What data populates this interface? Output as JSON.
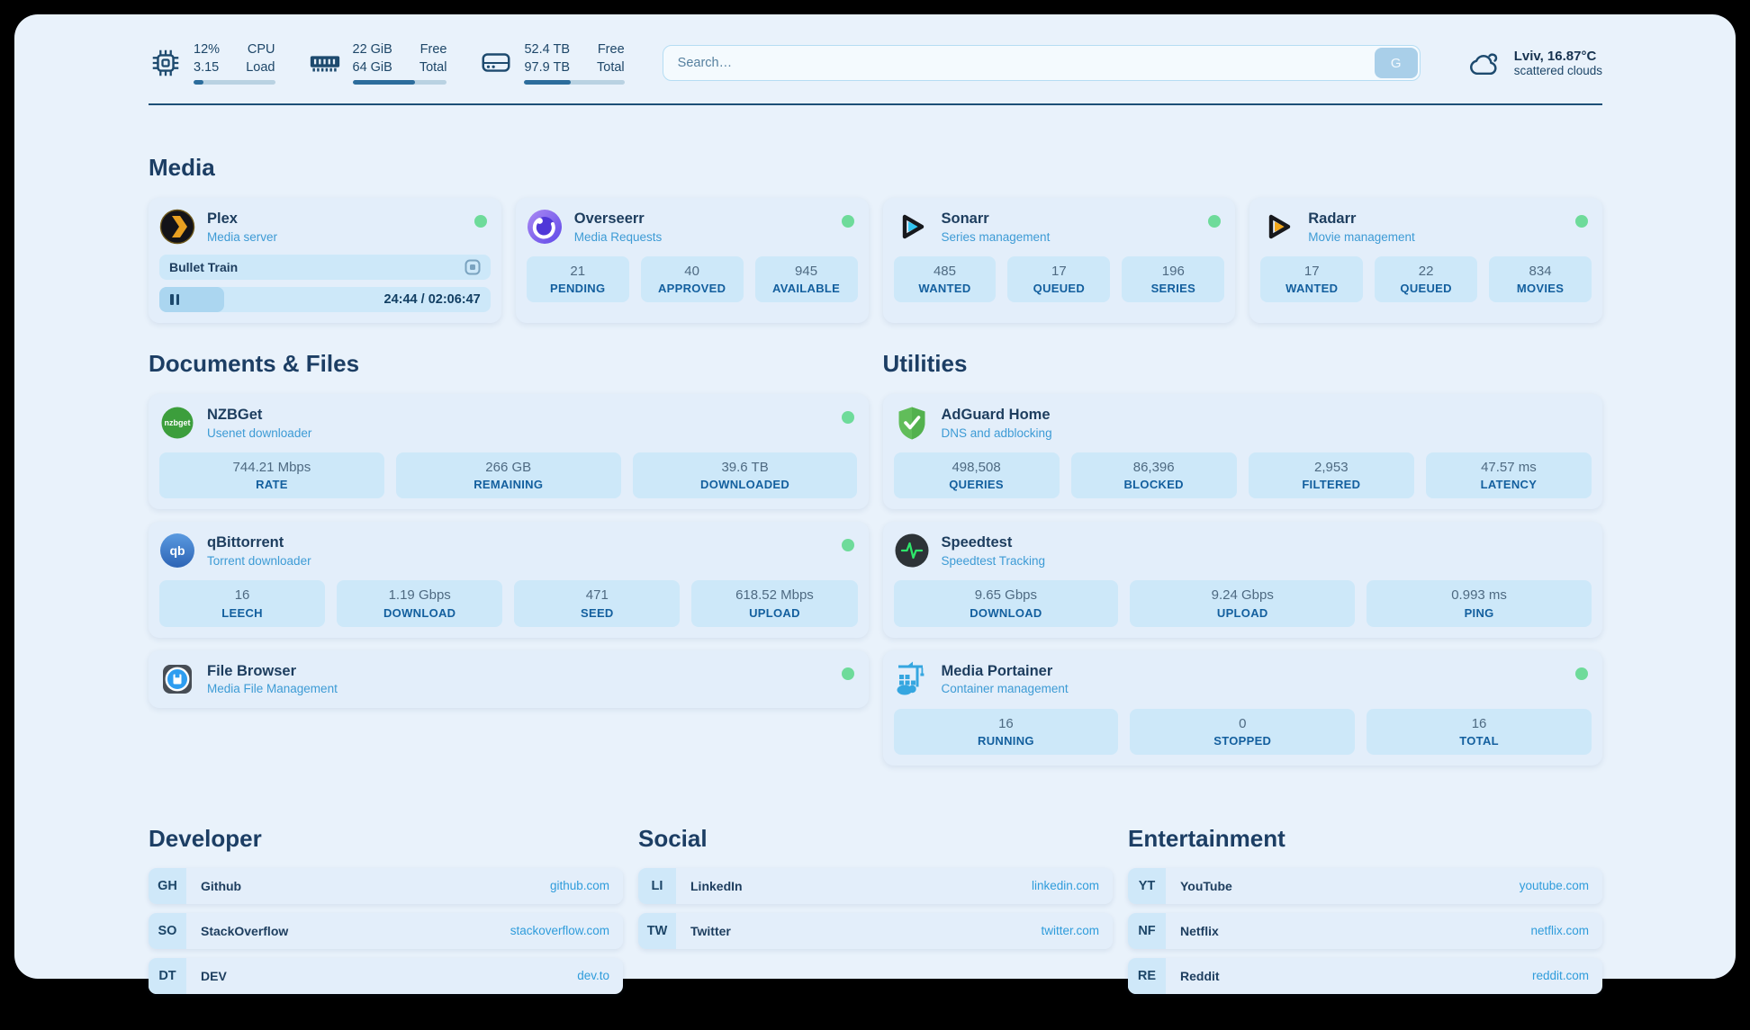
{
  "colors": {
    "accent_blue": "#2f9cdb",
    "status_green": "#6edb9a",
    "navy": "#1d4668",
    "page_bg": "#e9f2fb"
  },
  "topbar": {
    "resources": [
      {
        "icon": "cpu-icon",
        "line1_value": "12%",
        "line2_value": "3.15",
        "line1_label": "CPU",
        "line2_label": "Load",
        "progress_pct": 12
      },
      {
        "icon": "memory-icon",
        "line1_value": "22 GiB",
        "line2_value": "64 GiB",
        "line1_label": "Free",
        "line2_label": "Total",
        "progress_pct": 66
      },
      {
        "icon": "disk-icon",
        "line1_value": "52.4 TB",
        "line2_value": "97.9 TB",
        "line1_label": "Free",
        "line2_label": "Total",
        "progress_pct": 46
      }
    ],
    "search": {
      "placeholder": "Search…",
      "button": "G"
    },
    "weather": {
      "icon": "cloud-icon",
      "line1": "Lviv, 16.87°C",
      "line2": "scattered clouds"
    }
  },
  "sections": {
    "media": {
      "title": "Media",
      "plex": {
        "icon": "plex-icon",
        "name": "Plex",
        "subtitle": "Media server",
        "online": true,
        "now_playing": {
          "title": "Bullet Train",
          "time_display": "24:44 / 02:06:47",
          "progress_pct": 19.5
        }
      },
      "cards": [
        {
          "icon": "overseerr-icon",
          "name": "Overseerr",
          "subtitle": "Media Requests",
          "online": true,
          "stats": [
            {
              "value": "21",
              "label": "PENDING"
            },
            {
              "value": "40",
              "label": "APPROVED"
            },
            {
              "value": "945",
              "label": "AVAILABLE"
            }
          ]
        },
        {
          "icon": "sonarr-icon",
          "name": "Sonarr",
          "subtitle": "Series management",
          "online": true,
          "stats": [
            {
              "value": "485",
              "label": "WANTED"
            },
            {
              "value": "17",
              "label": "QUEUED"
            },
            {
              "value": "196",
              "label": "SERIES"
            }
          ]
        },
        {
          "icon": "radarr-icon",
          "name": "Radarr",
          "subtitle": "Movie management",
          "online": true,
          "stats": [
            {
              "value": "17",
              "label": "WANTED"
            },
            {
              "value": "22",
              "label": "QUEUED"
            },
            {
              "value": "834",
              "label": "MOVIES"
            }
          ]
        }
      ]
    },
    "documents": {
      "title": "Documents & Files",
      "cards": [
        {
          "icon": "nzbget-icon",
          "icon_text": "nzbget",
          "name": "NZBGet",
          "subtitle": "Usenet downloader",
          "online": true,
          "stats": [
            {
              "value": "744.21 Mbps",
              "label": "RATE"
            },
            {
              "value": "266 GB",
              "label": "REMAINING"
            },
            {
              "value": "39.6 TB",
              "label": "DOWNLOADED"
            }
          ]
        },
        {
          "icon": "qbittorrent-icon",
          "icon_text": "qb",
          "name": "qBittorrent",
          "subtitle": "Torrent downloader",
          "online": true,
          "stats": [
            {
              "value": "16",
              "label": "LEECH"
            },
            {
              "value": "1.19 Gbps",
              "label": "DOWNLOAD"
            },
            {
              "value": "471",
              "label": "SEED"
            },
            {
              "value": "618.52 Mbps",
              "label": "UPLOAD"
            }
          ]
        },
        {
          "icon": "filebrowser-icon",
          "name": "File Browser",
          "subtitle": "Media File Management",
          "online": true,
          "stats": []
        }
      ]
    },
    "utilities": {
      "title": "Utilities",
      "cards": [
        {
          "icon": "adguard-icon",
          "name": "AdGuard Home",
          "subtitle": "DNS and adblocking",
          "online": false,
          "stats": [
            {
              "value": "498,508",
              "label": "QUERIES"
            },
            {
              "value": "86,396",
              "label": "BLOCKED"
            },
            {
              "value": "2,953",
              "label": "FILTERED"
            },
            {
              "value": "47.57 ms",
              "label": "LATENCY"
            }
          ]
        },
        {
          "icon": "speedtest-icon",
          "name": "Speedtest",
          "subtitle": "Speedtest Tracking",
          "online": false,
          "stats": [
            {
              "value": "9.65 Gbps",
              "label": "DOWNLOAD"
            },
            {
              "value": "9.24 Gbps",
              "label": "UPLOAD"
            },
            {
              "value": "0.993 ms",
              "label": "PING"
            }
          ]
        },
        {
          "icon": "portainer-icon",
          "name": "Media Portainer",
          "subtitle": "Container management",
          "online": true,
          "stats": [
            {
              "value": "16",
              "label": "RUNNING"
            },
            {
              "value": "0",
              "label": "STOPPED"
            },
            {
              "value": "16",
              "label": "TOTAL"
            }
          ]
        }
      ]
    },
    "bookmarks": [
      {
        "title": "Developer",
        "links": [
          {
            "abbr": "GH",
            "name": "Github",
            "url": "github.com"
          },
          {
            "abbr": "SO",
            "name": "StackOverflow",
            "url": "stackoverflow.com"
          },
          {
            "abbr": "DT",
            "name": "DEV",
            "url": "dev.to"
          }
        ]
      },
      {
        "title": "Social",
        "links": [
          {
            "abbr": "LI",
            "name": "LinkedIn",
            "url": "linkedin.com"
          },
          {
            "abbr": "TW",
            "name": "Twitter",
            "url": "twitter.com"
          }
        ]
      },
      {
        "title": "Entertainment",
        "links": [
          {
            "abbr": "YT",
            "name": "YouTube",
            "url": "youtube.com"
          },
          {
            "abbr": "NF",
            "name": "Netflix",
            "url": "netflix.com"
          },
          {
            "abbr": "RE",
            "name": "Reddit",
            "url": "reddit.com"
          }
        ]
      }
    ]
  }
}
